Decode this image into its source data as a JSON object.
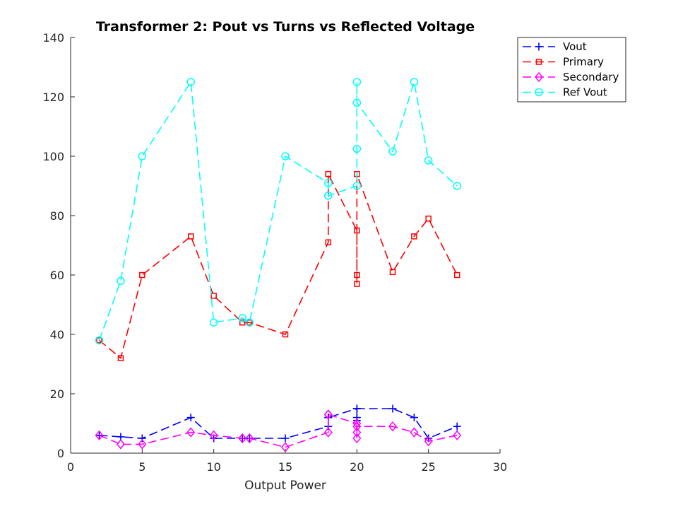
{
  "chart_data": {
    "type": "line",
    "title": "Transformer 2: Pout vs Turns vs Reflected Voltage",
    "xlabel": "Output Power",
    "ylabel": "",
    "xlim": [
      0,
      30
    ],
    "ylim": [
      0,
      140
    ],
    "xticks": [
      0,
      5,
      10,
      15,
      20,
      25,
      30
    ],
    "yticks": [
      0,
      20,
      40,
      60,
      80,
      100,
      120,
      140
    ],
    "grid": false,
    "legend_position": "top-right",
    "x": [
      2,
      3.5,
      5,
      8.4,
      10,
      12,
      12.5,
      15,
      18,
      18,
      18,
      20,
      20,
      20,
      20,
      22.5,
      24,
      25,
      27
    ],
    "series": [
      {
        "name": "Vout",
        "color": "#0000ff",
        "marker": "plus",
        "values": [
          6,
          5.5,
          5,
          12,
          5,
          5,
          5,
          5,
          9,
          12,
          12,
          15,
          11,
          12,
          15,
          15,
          12,
          5,
          9
        ]
      },
      {
        "name": "Primary",
        "color": "#ff0000",
        "marker": "square",
        "values": [
          38,
          32,
          60,
          73,
          53,
          44,
          44,
          40,
          71,
          94,
          94,
          75,
          60,
          57,
          94,
          61,
          73,
          79,
          60
        ]
      },
      {
        "name": "Secondary",
        "color": "#ff00ff",
        "marker": "diamond",
        "values": [
          6,
          3,
          3,
          7,
          6,
          5,
          5,
          2,
          7,
          13,
          13,
          10,
          7,
          5,
          9,
          9,
          7,
          4,
          6
        ]
      },
      {
        "name": "Ref Vout",
        "color": "#00ffff",
        "marker": "circle",
        "values": [
          38,
          58,
          100,
          125,
          44,
          45.5,
          44,
          100,
          91,
          86.7,
          86.7,
          90,
          102.5,
          125,
          118,
          101.6,
          125,
          98.6,
          90
        ]
      }
    ]
  }
}
